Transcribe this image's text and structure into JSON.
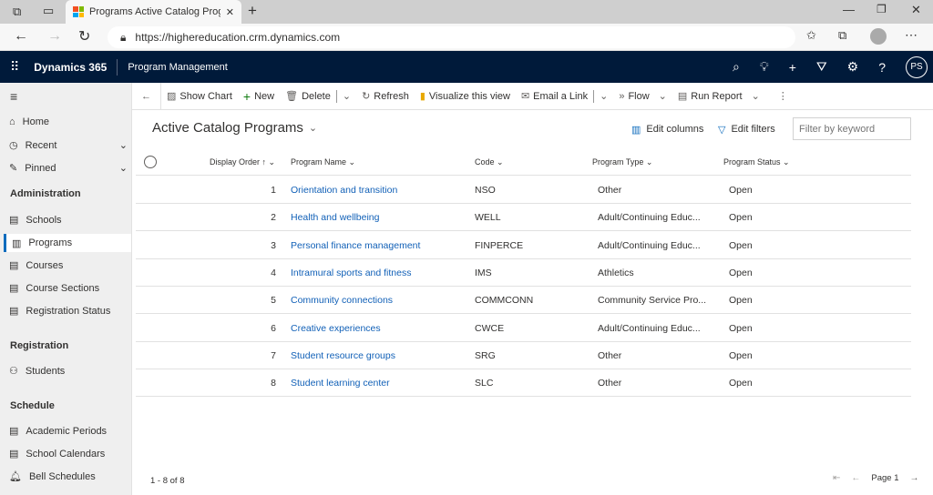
{
  "browser": {
    "tab_title": "Programs Active Catalog Progra",
    "url": "https://highereducation.crm.dynamics.com"
  },
  "app": {
    "name": "Dynamics 365",
    "area": "Program Management",
    "user_initials": "PS"
  },
  "sidebar": {
    "top": [
      {
        "label": "Home",
        "icon": "home-icon"
      },
      {
        "label": "Recent",
        "icon": "clock-icon"
      },
      {
        "label": "Pinned",
        "icon": "pin-icon"
      }
    ],
    "groups": [
      {
        "title": "Administration",
        "items": [
          {
            "label": "Schools"
          },
          {
            "label": "Programs",
            "selected": true
          },
          {
            "label": "Courses"
          },
          {
            "label": "Course Sections"
          },
          {
            "label": "Registration Status"
          }
        ]
      },
      {
        "title": "Registration",
        "items": [
          {
            "label": "Students"
          }
        ]
      },
      {
        "title": "Schedule",
        "items": [
          {
            "label": "Academic Periods"
          },
          {
            "label": "School Calendars"
          },
          {
            "label": "Bell Schedules"
          }
        ]
      }
    ]
  },
  "commands": {
    "show_chart": "Show Chart",
    "new": "New",
    "delete": "Delete",
    "refresh": "Refresh",
    "visualize": "Visualize this view",
    "email": "Email a Link",
    "flow": "Flow",
    "run_report": "Run Report"
  },
  "view": {
    "title": "Active Catalog Programs",
    "edit_columns": "Edit columns",
    "edit_filters": "Edit filters",
    "filter_placeholder": "Filter by keyword"
  },
  "columns": [
    "Display Order",
    "Program Name",
    "Code",
    "Program Type",
    "Program Status"
  ],
  "rows": [
    {
      "order": "1",
      "name": "Orientation and transition",
      "code": "NSO",
      "type": "Other",
      "status": "Open"
    },
    {
      "order": "2",
      "name": "Health and wellbeing",
      "code": "WELL",
      "type": "Adult/Continuing Educ...",
      "status": "Open"
    },
    {
      "order": "3",
      "name": "Personal finance management",
      "code": "FINPERCE",
      "type": "Adult/Continuing Educ...",
      "status": "Open"
    },
    {
      "order": "4",
      "name": "Intramural sports and fitness",
      "code": "IMS",
      "type": "Athletics",
      "status": "Open"
    },
    {
      "order": "5",
      "name": "Community connections",
      "code": "COMMCONN",
      "type": "Community Service Pro...",
      "status": "Open"
    },
    {
      "order": "6",
      "name": "Creative experiences",
      "code": "CWCE",
      "type": "Adult/Continuing Educ...",
      "status": "Open"
    },
    {
      "order": "7",
      "name": "Student resource groups",
      "code": "SRG",
      "type": "Other",
      "status": "Open"
    },
    {
      "order": "8",
      "name": "Student learning center",
      "code": "SLC",
      "type": "Other",
      "status": "Open"
    }
  ],
  "footer": {
    "count": "1 - 8 of 8",
    "page": "Page 1"
  }
}
